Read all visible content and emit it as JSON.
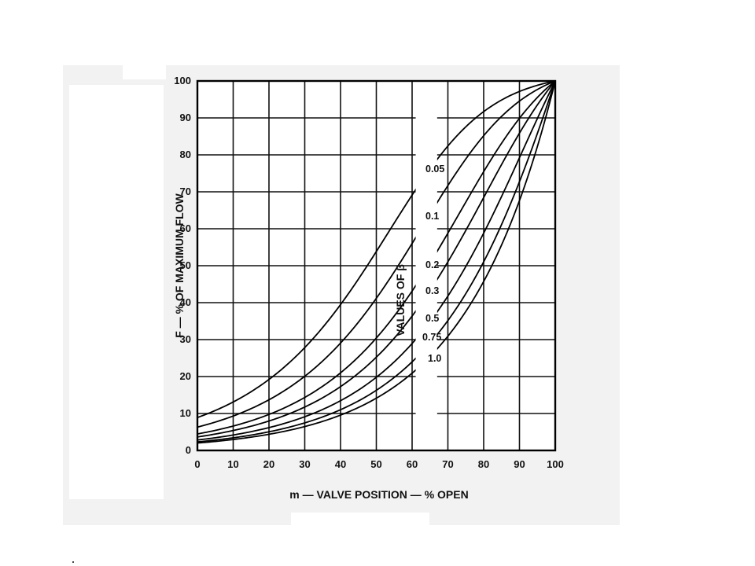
{
  "chart_data": {
    "type": "line",
    "xlabel": "m — VALVE POSITION — % OPEN",
    "ylabel": "F — % OF MAXIMUM FLOW",
    "legend_title": "VALUES OF β",
    "xlim": [
      0,
      100
    ],
    "ylim": [
      0,
      100
    ],
    "x_ticks": [
      "0",
      "10",
      "20",
      "30",
      "40",
      "50",
      "60",
      "70",
      "80",
      "90",
      "100"
    ],
    "y_ticks": [
      "0",
      "10",
      "20",
      "30",
      "40",
      "50",
      "60",
      "70",
      "80",
      "90",
      "100"
    ],
    "grid": true,
    "series": [
      {
        "name": "0.05",
        "beta": 0.05
      },
      {
        "name": "0.1",
        "beta": 0.1
      },
      {
        "name": "0.2",
        "beta": 0.2
      },
      {
        "name": "0.3",
        "beta": 0.3
      },
      {
        "name": "0.5",
        "beta": 0.5
      },
      {
        "name": "0.75",
        "beta": 0.75
      },
      {
        "name": "1.0",
        "beta": 1.0
      }
    ]
  }
}
